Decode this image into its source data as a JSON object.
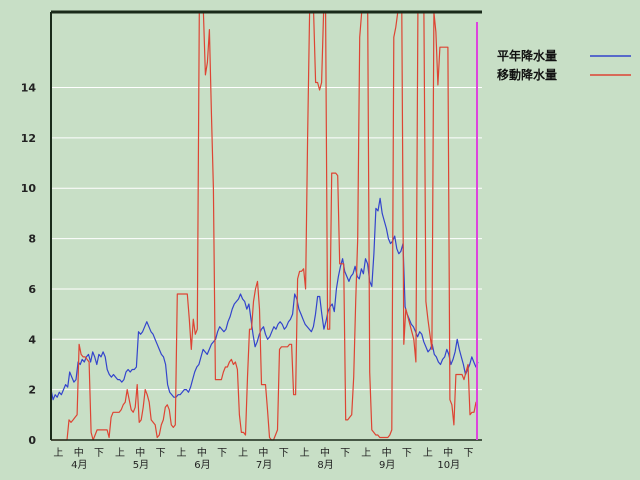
{
  "chart_data": {
    "type": "line",
    "title": "",
    "xlabel": "",
    "ylabel": "",
    "ylim": [
      0,
      17
    ],
    "y_ticks": [
      0,
      2,
      4,
      6,
      8,
      10,
      12,
      14
    ],
    "grid": true,
    "legend_position": "top-right",
    "x_period_labels": [
      "上",
      "中",
      "下"
    ],
    "x_month_labels": [
      "4月",
      "5月",
      "6月",
      "7月",
      "8月",
      "9月",
      "10月"
    ],
    "series": [
      {
        "name": "平年降水量",
        "color": "#3344cc",
        "values": [
          2.0,
          1.6,
          1.8,
          1.7,
          1.9,
          1.8,
          2.0,
          2.2,
          2.1,
          2.7,
          2.5,
          2.3,
          2.4,
          3.1,
          3.0,
          3.2,
          3.1,
          3.3,
          3.4,
          3.1,
          3.5,
          3.3,
          3.0,
          3.4,
          3.3,
          3.5,
          3.3,
          2.8,
          2.6,
          2.5,
          2.6,
          2.5,
          2.4,
          2.4,
          2.3,
          2.4,
          2.7,
          2.8,
          2.7,
          2.8,
          2.8,
          2.9,
          4.3,
          4.2,
          4.3,
          4.5,
          4.7,
          4.5,
          4.3,
          4.2,
          4.0,
          3.8,
          3.6,
          3.4,
          3.3,
          3.0,
          2.2,
          1.9,
          1.8,
          1.7,
          1.7,
          1.8,
          1.8,
          1.9,
          2.0,
          2.0,
          1.9,
          2.1,
          2.4,
          2.7,
          2.9,
          3.0,
          3.3,
          3.6,
          3.5,
          3.4,
          3.6,
          3.8,
          3.9,
          4.0,
          4.3,
          4.5,
          4.4,
          4.3,
          4.4,
          4.7,
          4.9,
          5.2,
          5.4,
          5.5,
          5.6,
          5.8,
          5.6,
          5.5,
          5.2,
          5.4,
          4.8,
          4.2,
          3.7,
          3.9,
          4.2,
          4.4,
          4.5,
          4.2,
          4.0,
          4.1,
          4.3,
          4.5,
          4.4,
          4.6,
          4.7,
          4.6,
          4.4,
          4.5,
          4.7,
          4.8,
          5.0,
          5.8,
          5.6,
          5.2,
          5.0,
          4.8,
          4.6,
          4.5,
          4.4,
          4.3,
          4.5,
          5.0,
          5.7,
          5.7,
          5.0,
          4.4,
          4.7,
          5.1,
          5.3,
          5.4,
          5.1,
          6.0,
          6.5,
          6.9,
          7.2,
          6.7,
          6.5,
          6.3,
          6.5,
          6.6,
          6.9,
          6.5,
          6.4,
          6.8,
          6.6,
          7.2,
          7.0,
          6.3,
          6.1,
          7.4,
          9.2,
          9.1,
          9.6,
          9.0,
          8.7,
          8.4,
          8.0,
          7.8,
          7.9,
          8.1,
          7.6,
          7.4,
          7.5,
          7.8,
          5.3,
          5.0,
          4.8,
          4.6,
          4.5,
          4.3,
          4.1,
          4.3,
          4.2,
          3.9,
          3.7,
          3.5,
          3.6,
          3.8,
          3.4,
          3.3,
          3.1,
          3.0,
          3.2,
          3.3,
          3.6,
          3.4,
          3.0,
          3.2,
          3.5,
          4.0,
          3.6,
          3.3,
          3.0,
          2.6,
          2.8,
          3.0,
          3.3,
          3.1,
          2.9,
          3.1
        ]
      },
      {
        "name": "移動降水量",
        "color": "#dd4433",
        "values": [
          0,
          0,
          0,
          0,
          0,
          0,
          0,
          0,
          0,
          0.8,
          0.7,
          0.8,
          0.9,
          1.0,
          3.8,
          3.4,
          3.3,
          3.3,
          3.2,
          3.1,
          0.3,
          0,
          0.2,
          0.4,
          0.4,
          0.4,
          0.4,
          0.4,
          0.4,
          0.1,
          0.9,
          1.1,
          1.1,
          1.1,
          1.1,
          1.2,
          1.4,
          1.5,
          2.0,
          1.6,
          1.2,
          1.1,
          1.3,
          2.2,
          0.7,
          0.8,
          1.3,
          2.0,
          1.8,
          1.5,
          0.8,
          0.7,
          0.6,
          0.1,
          0.2,
          0.6,
          0.8,
          1.3,
          1.4,
          1.2,
          0.6,
          0.5,
          0.6,
          5.8,
          5.8,
          5.8,
          5.8,
          5.8,
          5.8,
          4.8,
          3.6,
          4.8,
          4.2,
          4.4,
          17.0,
          17.0,
          17.0,
          14.5,
          15.0,
          16.3,
          13.0,
          10.0,
          2.4,
          2.4,
          2.4,
          2.4,
          2.7,
          2.9,
          2.9,
          3.1,
          3.2,
          3.0,
          3.1,
          2.8,
          1.0,
          0.3,
          0.3,
          0.2,
          2.5,
          4.4,
          4.4,
          5.5,
          6.0,
          6.3,
          5.2,
          2.2,
          2.2,
          2.2,
          1.2,
          0.1,
          0,
          0,
          0.2,
          0.4,
          3.6,
          3.7,
          3.7,
          3.7,
          3.7,
          3.8,
          3.8,
          1.8,
          1.8,
          6.4,
          6.7,
          6.7,
          6.8,
          6.0,
          12.0,
          17.0,
          17.0,
          17.0,
          14.2,
          14.2,
          13.9,
          14.2,
          17.0,
          17.0,
          4.4,
          4.4,
          10.6,
          10.6,
          10.6,
          10.5,
          7.0,
          7.0,
          7.0,
          0.8,
          0.8,
          0.9,
          1.0,
          2.5,
          5.5,
          8.0,
          16.0,
          17.0,
          17.0,
          17.0,
          17.0,
          2.7,
          0.4,
          0.3,
          0.2,
          0.2,
          0.1,
          0.1,
          0.1,
          0.1,
          0.1,
          0.2,
          0.4,
          16.0,
          16.4,
          17.0,
          17.0,
          17.0,
          3.8,
          5.2,
          4.9,
          4.6,
          4.3,
          4.0,
          3.1,
          17.0,
          17.0,
          17.0,
          17.0,
          5.5,
          4.8,
          4.2,
          3.6,
          17.0,
          16.2,
          14.1,
          15.6,
          15.6,
          15.6,
          15.6,
          15.6,
          1.6,
          1.4,
          0.6,
          2.6,
          2.6,
          2.6,
          2.6,
          2.4,
          2.7,
          3.0,
          1.0,
          1.1,
          1.1,
          1.5,
          1.5
        ]
      }
    ]
  }
}
